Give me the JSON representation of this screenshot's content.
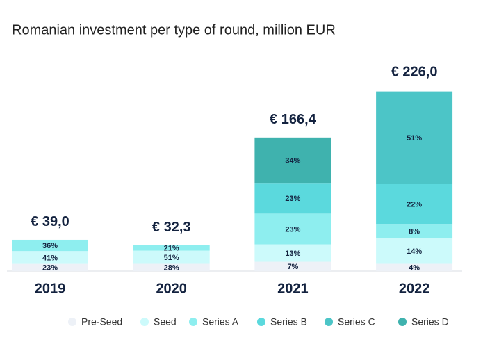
{
  "chart_data": {
    "type": "stacked-bar",
    "title": "Romanian investment per type of round, million EUR",
    "categories": [
      "2019",
      "2020",
      "2021",
      "2022"
    ],
    "totals": {
      "values": [
        39.0,
        32.3,
        166.4,
        226.0
      ],
      "value_labels": [
        "€ 39,0",
        "€ 32,3",
        "€ 166,4",
        "€ 226,0"
      ]
    },
    "series": [
      {
        "name": "Pre-Seed",
        "color": "#edf1f7",
        "values": [
          23,
          28,
          7,
          4
        ],
        "value_labels": [
          "23%",
          "28%",
          "7%",
          "4%"
        ]
      },
      {
        "name": "Seed",
        "color": "#ccfafb",
        "values": [
          41,
          51,
          13,
          14
        ],
        "value_labels": [
          "41%",
          "51%",
          "13%",
          "14%"
        ]
      },
      {
        "name": "Series A",
        "color": "#8eeeef",
        "values": [
          36,
          21,
          23,
          8
        ],
        "value_labels": [
          "36%",
          "21%",
          "23%",
          "8%"
        ]
      },
      {
        "name": "Series B",
        "color": "#5bd9dd",
        "values": [
          null,
          null,
          23,
          22
        ],
        "value_labels": [
          null,
          null,
          "23%",
          "22%"
        ]
      },
      {
        "name": "Series C",
        "color": "#4cc5c7",
        "values": [
          null,
          null,
          null,
          51
        ],
        "value_labels": [
          null,
          null,
          null,
          "51%"
        ]
      },
      {
        "name": "Series D",
        "color": "#3fb2ae",
        "values": [
          null,
          null,
          34,
          null
        ],
        "value_labels": [
          null,
          null,
          "34%",
          null
        ]
      }
    ],
    "legend": "bottom"
  }
}
